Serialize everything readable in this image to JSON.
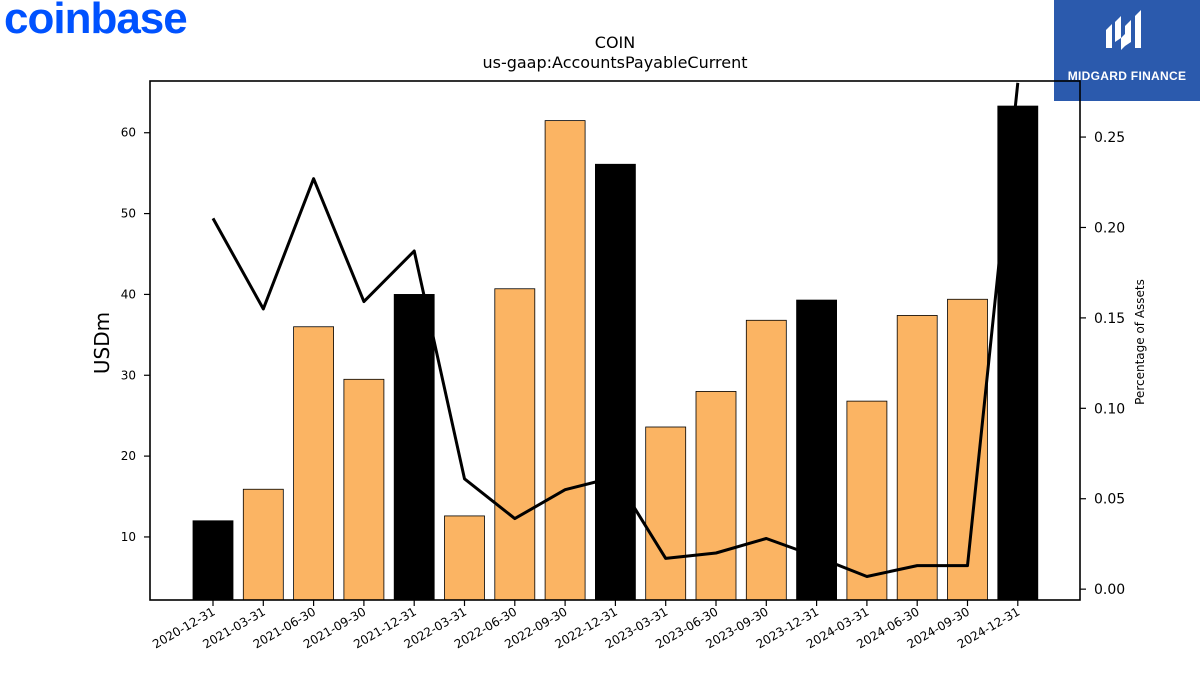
{
  "brand": {
    "logo_text": "coinbase",
    "logo_color": "#0052ff"
  },
  "badge": {
    "name": "MIDGARD FINANCE",
    "bg_color": "#2b5aad"
  },
  "chart_data": {
    "type": "bar",
    "title": "COIN",
    "subtitle": "us-gaap:AccountsPayableCurrent",
    "ylabel": "USDm",
    "y2label": "Percentage of Assets",
    "categories": [
      "2020-12-31",
      "2021-03-31",
      "2021-06-30",
      "2021-09-30",
      "2021-12-31",
      "2022-03-31",
      "2022-06-30",
      "2022-09-30",
      "2022-12-31",
      "2023-03-31",
      "2023-06-30",
      "2023-09-30",
      "2023-12-31",
      "2024-03-31",
      "2024-06-30",
      "2024-09-30",
      "2024-12-31"
    ],
    "series": [
      {
        "type": "bar",
        "values": [
          12.0,
          15.9,
          36.0,
          29.5,
          40.0,
          12.6,
          40.7,
          61.5,
          56.1,
          23.6,
          28.0,
          36.8,
          39.3,
          26.8,
          37.4,
          39.4,
          63.3
        ],
        "highlight": [
          true,
          false,
          false,
          false,
          true,
          false,
          false,
          false,
          true,
          false,
          false,
          false,
          true,
          false,
          false,
          false,
          true
        ]
      },
      {
        "type": "line",
        "axis": "right",
        "values": [
          0.205,
          0.155,
          0.227,
          0.159,
          0.187,
          0.061,
          0.039,
          0.055,
          0.062,
          0.017,
          0.02,
          0.028,
          0.018,
          0.007,
          0.013,
          0.013,
          0.28
        ]
      }
    ],
    "ylim": [
      2.2,
      66.4
    ],
    "y2lim": [
      -0.006,
      0.281
    ],
    "yticks": [
      10,
      20,
      30,
      40,
      50,
      60
    ],
    "y2ticks": [
      0.0,
      0.05,
      0.1,
      0.15,
      0.2,
      0.25
    ],
    "y2tick_labels": [
      "0.00",
      "0.05",
      "0.10",
      "0.15",
      "0.20",
      "0.25"
    ],
    "colors": {
      "bar": "#fbb463",
      "bar_highlight": "#000000",
      "line": "#000000",
      "axis": "#000000"
    },
    "grid": false,
    "legend": "none"
  }
}
